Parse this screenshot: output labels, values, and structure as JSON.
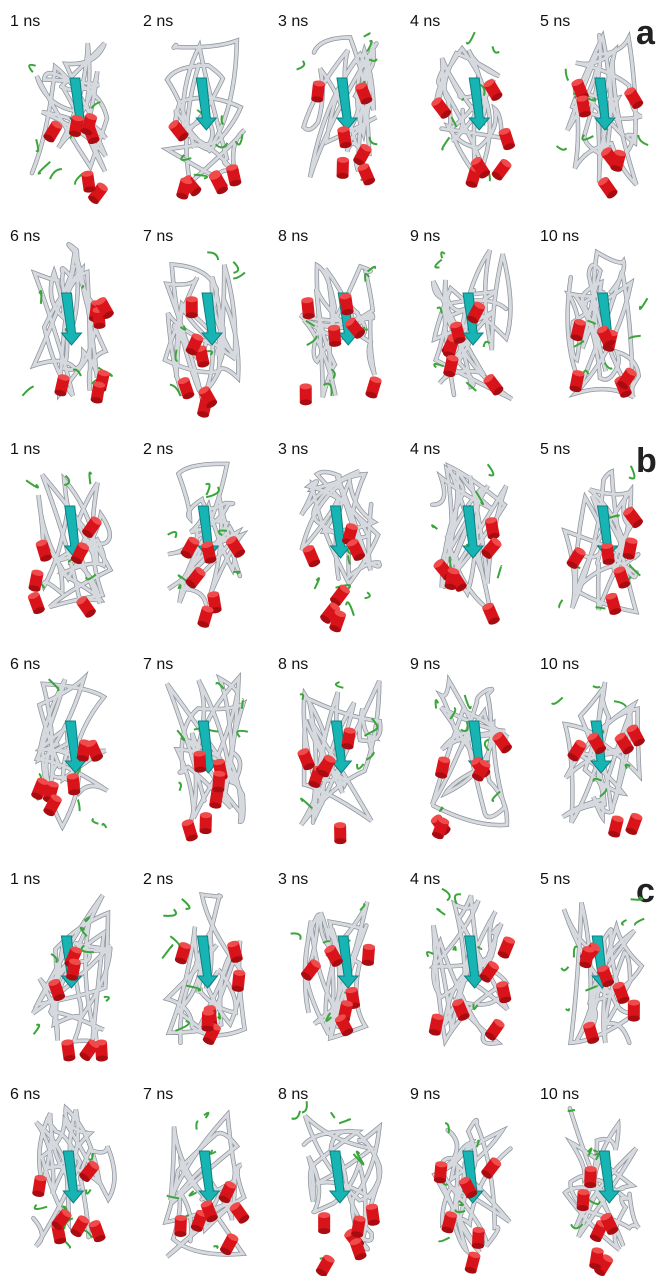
{
  "panels": [
    {
      "letter": "a",
      "frames": [
        "1 ns",
        "2 ns",
        "3 ns",
        "4 ns",
        "5 ns",
        "6 ns",
        "7 ns",
        "8 ns",
        "9 ns",
        "10 ns"
      ]
    },
    {
      "letter": "b",
      "frames": [
        "1 ns",
        "2 ns",
        "3 ns",
        "4 ns",
        "5 ns",
        "6 ns",
        "7 ns",
        "8 ns",
        "9 ns",
        "10 ns"
      ]
    },
    {
      "letter": "c",
      "frames": [
        "1 ns",
        "2 ns",
        "3 ns",
        "4 ns",
        "5 ns",
        "6 ns",
        "7 ns",
        "8 ns",
        "9 ns",
        "10 ns"
      ]
    }
  ]
}
